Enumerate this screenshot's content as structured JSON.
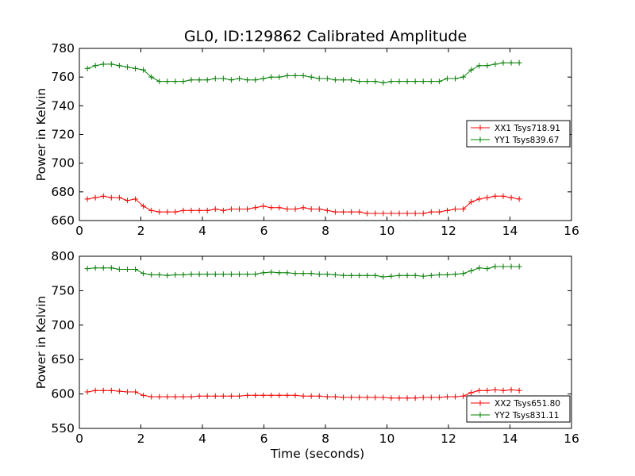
{
  "title": "GL0, ID:129862 Calibrated Amplitude",
  "chart_data": [
    {
      "type": "line",
      "title": "GL0, ID:129862 Calibrated Amplitude",
      "xlabel": "",
      "ylabel": "Power in Kelvin",
      "xlim": [
        0,
        16
      ],
      "ylim": [
        660,
        780
      ],
      "xticks": [
        "0",
        "2",
        "4",
        "6",
        "8",
        "10",
        "12",
        "14",
        "16"
      ],
      "yticks": [
        "660",
        "680",
        "700",
        "720",
        "740",
        "760",
        "780"
      ],
      "grid": false,
      "legend_position": "center-right",
      "x": [
        0.26,
        0.52,
        0.78,
        1.04,
        1.3,
        1.56,
        1.82,
        2.08,
        2.34,
        2.6,
        2.86,
        3.12,
        3.38,
        3.64,
        3.9,
        4.16,
        4.42,
        4.68,
        4.94,
        5.2,
        5.46,
        5.72,
        5.98,
        6.24,
        6.5,
        6.76,
        7.02,
        7.28,
        7.54,
        7.8,
        8.06,
        8.32,
        8.58,
        8.84,
        9.1,
        9.36,
        9.62,
        9.88,
        10.14,
        10.4,
        10.66,
        10.92,
        11.18,
        11.44,
        11.7,
        11.96,
        12.22,
        12.48,
        12.74,
        13.0,
        13.26,
        13.52,
        13.78,
        14.04,
        14.3
      ],
      "series": [
        {
          "name": "XX1 Tsys718.91",
          "color": "#ff0000",
          "values": [
            675,
            676,
            677,
            676,
            676,
            674,
            675,
            670,
            667,
            666,
            666,
            666,
            667,
            667,
            667,
            667,
            668,
            667,
            668,
            668,
            668,
            669,
            670,
            669,
            669,
            668,
            668,
            669,
            668,
            668,
            667,
            666,
            666,
            666,
            666,
            665,
            665,
            665,
            665,
            665,
            665,
            665,
            665,
            666,
            666,
            667,
            668,
            668,
            673,
            675,
            676,
            677,
            677,
            676,
            675
          ]
        },
        {
          "name": "YY1 Tsys839.67",
          "color": "#008000",
          "values": [
            766,
            768,
            769,
            769,
            768,
            767,
            766,
            765,
            760,
            757,
            757,
            757,
            757,
            758,
            758,
            758,
            759,
            759,
            758,
            759,
            758,
            758,
            759,
            760,
            760,
            761,
            761,
            761,
            760,
            759,
            759,
            758,
            758,
            758,
            757,
            757,
            757,
            756,
            757,
            757,
            757,
            757,
            757,
            757,
            757,
            759,
            759,
            760,
            765,
            768,
            768,
            769,
            770,
            770,
            770
          ]
        }
      ]
    },
    {
      "type": "line",
      "title": "",
      "xlabel": "Time (seconds)",
      "ylabel": "Power in Kelvin",
      "xlim": [
        0,
        16
      ],
      "ylim": [
        550,
        800
      ],
      "xticks": [
        "0",
        "2",
        "4",
        "6",
        "8",
        "10",
        "12",
        "14",
        "16"
      ],
      "yticks": [
        "550",
        "600",
        "650",
        "700",
        "750",
        "800"
      ],
      "grid": false,
      "legend_position": "lower-right",
      "x": [
        0.26,
        0.52,
        0.78,
        1.04,
        1.3,
        1.56,
        1.82,
        2.08,
        2.34,
        2.6,
        2.86,
        3.12,
        3.38,
        3.64,
        3.9,
        4.16,
        4.42,
        4.68,
        4.94,
        5.2,
        5.46,
        5.72,
        5.98,
        6.24,
        6.5,
        6.76,
        7.02,
        7.28,
        7.54,
        7.8,
        8.06,
        8.32,
        8.58,
        8.84,
        9.1,
        9.36,
        9.62,
        9.88,
        10.14,
        10.4,
        10.66,
        10.92,
        11.18,
        11.44,
        11.7,
        11.96,
        12.22,
        12.48,
        12.74,
        13.0,
        13.26,
        13.52,
        13.78,
        14.04,
        14.3
      ],
      "series": [
        {
          "name": "XX2 Tsys651.80",
          "color": "#ff0000",
          "values": [
            603,
            605,
            605,
            605,
            604,
            603,
            603,
            598,
            596,
            596,
            596,
            596,
            596,
            596,
            597,
            597,
            597,
            597,
            597,
            597,
            598,
            598,
            598,
            598,
            598,
            598,
            598,
            597,
            597,
            597,
            596,
            596,
            595,
            595,
            595,
            595,
            595,
            595,
            594,
            594,
            594,
            594,
            595,
            595,
            595,
            596,
            596,
            597,
            602,
            605,
            605,
            606,
            605,
            606,
            605
          ]
        },
        {
          "name": "YY2 Tsys831.11",
          "color": "#008000",
          "values": [
            782,
            783,
            783,
            783,
            781,
            781,
            781,
            775,
            773,
            773,
            772,
            773,
            773,
            774,
            774,
            774,
            774,
            774,
            774,
            774,
            774,
            774,
            776,
            777,
            776,
            776,
            775,
            775,
            775,
            774,
            774,
            773,
            772,
            772,
            772,
            772,
            772,
            770,
            771,
            772,
            772,
            772,
            771,
            772,
            773,
            773,
            774,
            775,
            779,
            783,
            782,
            785,
            785,
            785,
            785
          ]
        }
      ]
    }
  ]
}
